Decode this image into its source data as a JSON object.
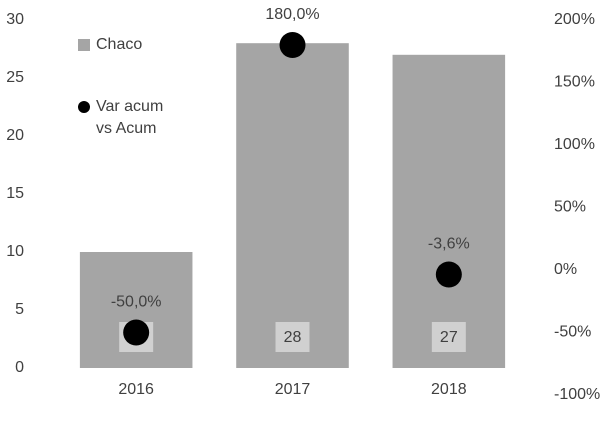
{
  "chart_data": {
    "type": "bar",
    "categories": [
      "2016",
      "2017",
      "2018"
    ],
    "series": [
      {
        "name": "Chaco",
        "type": "bar",
        "color": "#a5a5a5",
        "values": [
          10,
          28,
          27
        ],
        "value_labels": [
          "10",
          "28",
          "27"
        ]
      },
      {
        "name": "Var acum vs Acum",
        "type": "scatter",
        "axis": "y2",
        "color": "#000000",
        "values": [
          -50,
          180,
          -3.6
        ],
        "value_labels": [
          "-50,0%",
          "180,0%",
          "-3,6%"
        ]
      }
    ],
    "ylim": [
      0,
      30
    ],
    "yticks": [
      0,
      5,
      10,
      15,
      20,
      25,
      30
    ],
    "y2lim": [
      -100,
      200
    ],
    "y2ticks": [
      {
        "value": -100,
        "label": "-100%"
      },
      {
        "value": -50,
        "label": "-50%"
      },
      {
        "value": 0,
        "label": "0%"
      },
      {
        "value": 50,
        "label": "50%"
      },
      {
        "value": 100,
        "label": "100%"
      },
      {
        "value": 150,
        "label": "150%"
      },
      {
        "value": 200,
        "label": "200%"
      }
    ],
    "legend": "top-left"
  }
}
